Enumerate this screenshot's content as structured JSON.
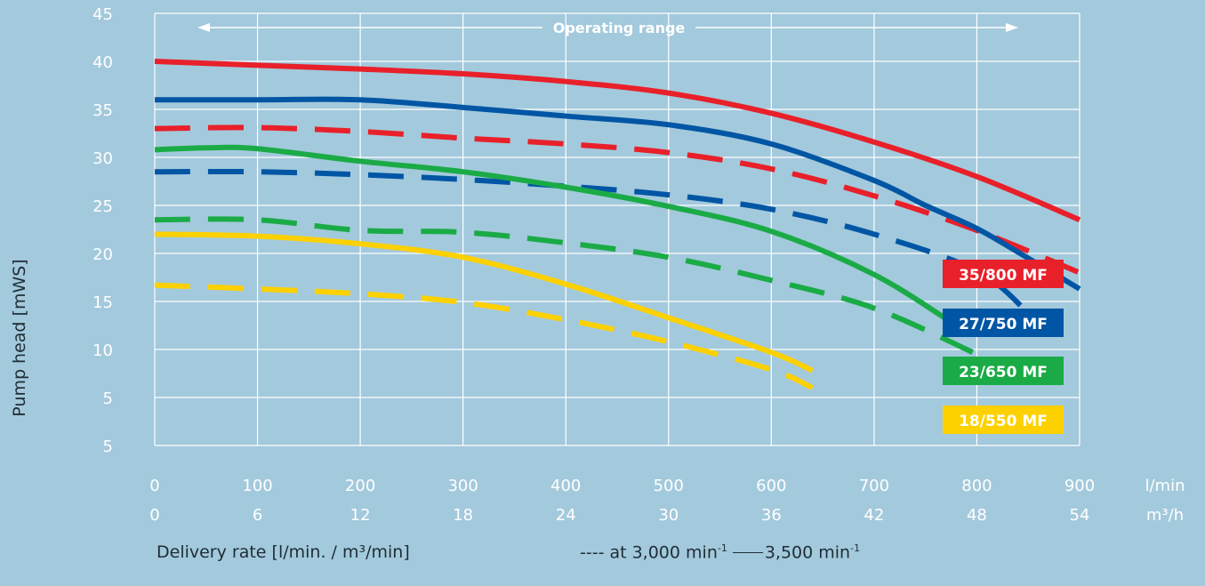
{
  "chart_data": {
    "type": "line",
    "title": "",
    "ylabel": "Pump head [mWS]",
    "xlabel": "Delivery rate [l/min. / m³/min]",
    "x_unit_primary": "l/min",
    "x_unit_secondary": "m³/h",
    "x_ticks_lmin": [
      "0",
      "100",
      "200",
      "300",
      "400",
      "500",
      "600",
      "700",
      "800",
      "900"
    ],
    "x_ticks_m3h": [
      "0",
      "6",
      "12",
      "18",
      "24",
      "30",
      "36",
      "42",
      "48",
      "54"
    ],
    "y_ticks": [
      "5",
      "5",
      "10",
      "15",
      "20",
      "25",
      "30",
      "35",
      "40",
      "45"
    ],
    "xlim": [
      0,
      900
    ],
    "ylim": [
      0,
      45
    ],
    "grid": true,
    "annotation": "Operating range",
    "legend": {
      "dashed_label": "---- at 3,000 min",
      "solid_label": "3,500 min",
      "superscript": "-1"
    },
    "series": [
      {
        "name": "35/800 MF",
        "color": "#e8202a",
        "style": "solid",
        "x": [
          0,
          100,
          200,
          300,
          400,
          500,
          600,
          700,
          800,
          900
        ],
        "y": [
          40,
          39.6,
          39.2,
          38.7,
          37.9,
          36.7,
          34.6,
          31.6,
          28,
          23.5
        ]
      },
      {
        "name": "35/800 MF",
        "color": "#e8202a",
        "style": "dashed",
        "x": [
          0,
          100,
          200,
          300,
          400,
          500,
          600,
          700,
          800,
          900
        ],
        "y": [
          33,
          33.1,
          32.7,
          32,
          31.4,
          30.5,
          28.8,
          26,
          22.4,
          18
        ]
      },
      {
        "name": "27/750 MF",
        "color": "#0056a4",
        "style": "solid",
        "x": [
          0,
          100,
          200,
          300,
          400,
          500,
          600,
          700,
          750,
          800,
          850,
          900
        ],
        "y": [
          36,
          36,
          36,
          35.2,
          34.3,
          33.4,
          31.4,
          27.6,
          25,
          22.6,
          19.5,
          16.3
        ]
      },
      {
        "name": "27/750 MF",
        "color": "#0056a4",
        "style": "dashed",
        "x": [
          0,
          100,
          200,
          300,
          400,
          500,
          600,
          700,
          800,
          850
        ],
        "y": [
          28.5,
          28.5,
          28.2,
          27.7,
          27,
          26.1,
          24.6,
          22,
          18.2,
          13.8
        ]
      },
      {
        "name": "23/650 MF",
        "color": "#1aab46",
        "style": "solid",
        "x": [
          0,
          50,
          100,
          200,
          300,
          400,
          500,
          600,
          700,
          780
        ],
        "y": [
          30.8,
          31,
          30.9,
          29.6,
          28.5,
          26.9,
          24.9,
          22.3,
          17.8,
          12.5
        ]
      },
      {
        "name": "23/650 MF",
        "color": "#1aab46",
        "style": "dashed",
        "x": [
          0,
          100,
          200,
          300,
          400,
          500,
          600,
          700,
          800
        ],
        "y": [
          23.5,
          23.5,
          22.4,
          22.2,
          21.1,
          19.6,
          17.2,
          14.3,
          9.5
        ]
      },
      {
        "name": "18/550 MF",
        "color": "#fdd100",
        "style": "solid",
        "x": [
          0,
          100,
          200,
          300,
          400,
          500,
          600,
          640
        ],
        "y": [
          22,
          21.8,
          21,
          19.6,
          16.8,
          13.3,
          9.7,
          7.8
        ]
      },
      {
        "name": "18/550 MF",
        "color": "#fdd100",
        "style": "dashed",
        "x": [
          0,
          100,
          200,
          300,
          400,
          500,
          600,
          640
        ],
        "y": [
          16.7,
          16.3,
          15.8,
          14.9,
          13.1,
          10.8,
          7.9,
          6
        ]
      }
    ],
    "label_boxes": [
      {
        "text": "35/800 MF",
        "color": "#e8202a",
        "text_color": "#ffffff"
      },
      {
        "text": "27/750 MF",
        "color": "#0056a4",
        "text_color": "#ffffff"
      },
      {
        "text": "23/650 MF",
        "color": "#1aab46",
        "text_color": "#ffffff"
      },
      {
        "text": "18/550 MF",
        "color": "#fdd100",
        "text_color": "#ffffff"
      }
    ]
  }
}
